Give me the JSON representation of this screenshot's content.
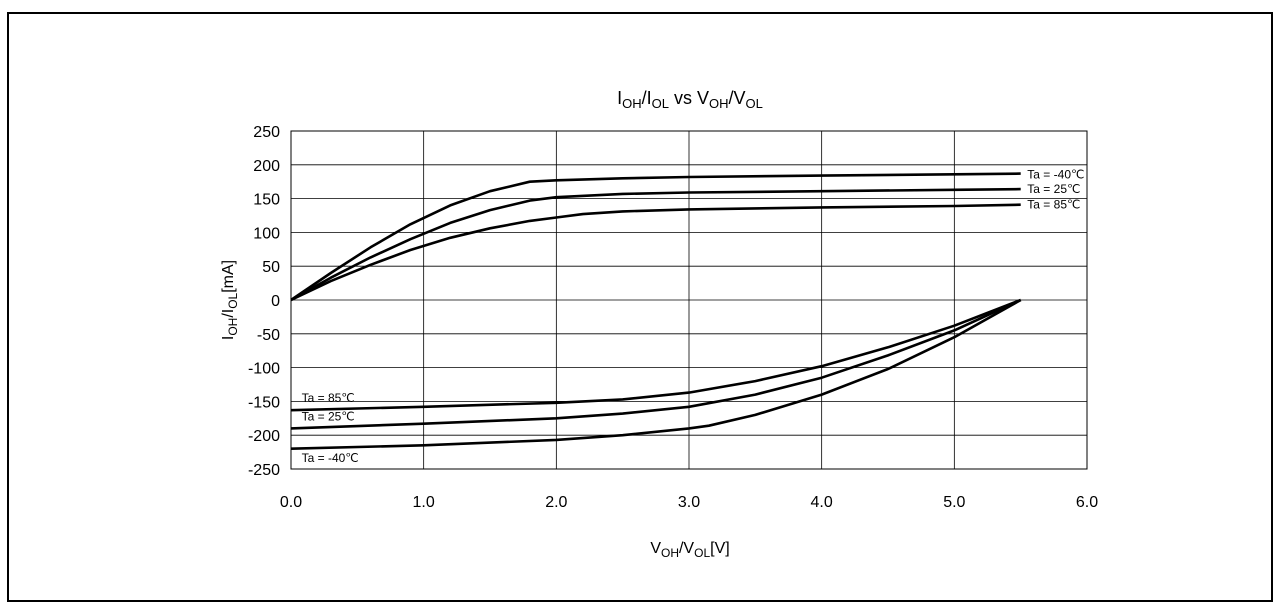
{
  "chart_data": {
    "type": "line",
    "title_parts": [
      {
        "text": "I",
        "sub": false
      },
      {
        "text": "OH",
        "sub": true
      },
      {
        "text": "/I",
        "sub": false
      },
      {
        "text": "OL",
        "sub": true
      },
      {
        "text": " vs V",
        "sub": false
      },
      {
        "text": "OH",
        "sub": true
      },
      {
        "text": "/V",
        "sub": false
      },
      {
        "text": "OL",
        "sub": true
      }
    ],
    "xlabel_parts": [
      {
        "text": "V",
        "sub": false
      },
      {
        "text": "OH",
        "sub": true
      },
      {
        "text": "/V",
        "sub": false
      },
      {
        "text": "OL",
        "sub": true
      },
      {
        "text": "[V]",
        "sub": false
      }
    ],
    "ylabel_parts": [
      {
        "text": "I",
        "sub": false
      },
      {
        "text": "OH",
        "sub": true
      },
      {
        "text": "/I",
        "sub": false
      },
      {
        "text": "OL",
        "sub": true
      },
      {
        "text": "[mA]",
        "sub": false
      }
    ],
    "xlim": [
      0,
      6
    ],
    "ylim": [
      -250,
      250
    ],
    "x_ticks": [
      0,
      1,
      2,
      3,
      4,
      5,
      6
    ],
    "x_tick_labels": [
      "0.0",
      "1.0",
      "2.0",
      "3.0",
      "4.0",
      "5.0",
      "6.0"
    ],
    "y_ticks": [
      250,
      200,
      150,
      100,
      50,
      0,
      -50,
      -100,
      -150,
      -200,
      -250
    ],
    "y_tick_labels": [
      "250",
      "200",
      "150",
      "100",
      "50",
      "0",
      "-50",
      "-100",
      "-150",
      "-200",
      "-250"
    ],
    "grid": true,
    "series": [
      {
        "name": "Ta = -40℃",
        "group": "IOH",
        "points": [
          [
            0,
            0
          ],
          [
            0.3,
            40
          ],
          [
            0.6,
            78
          ],
          [
            0.9,
            112
          ],
          [
            1.2,
            140
          ],
          [
            1.5,
            161
          ],
          [
            1.8,
            175
          ],
          [
            2.0,
            177
          ],
          [
            2.5,
            180
          ],
          [
            3.0,
            182
          ],
          [
            4.0,
            184
          ],
          [
            5.0,
            186
          ],
          [
            5.5,
            187
          ]
        ]
      },
      {
        "name": "Ta = 25℃",
        "group": "IOH",
        "points": [
          [
            0,
            0
          ],
          [
            0.3,
            33
          ],
          [
            0.6,
            63
          ],
          [
            0.9,
            90
          ],
          [
            1.2,
            114
          ],
          [
            1.5,
            133
          ],
          [
            1.8,
            147
          ],
          [
            2.0,
            152
          ],
          [
            2.5,
            157
          ],
          [
            3.0,
            159
          ],
          [
            4.0,
            161
          ],
          [
            5.0,
            163
          ],
          [
            5.5,
            164
          ]
        ]
      },
      {
        "name": "Ta = 85℃",
        "group": "IOH",
        "points": [
          [
            0,
            0
          ],
          [
            0.3,
            28
          ],
          [
            0.6,
            52
          ],
          [
            0.9,
            74
          ],
          [
            1.2,
            92
          ],
          [
            1.5,
            106
          ],
          [
            1.8,
            117
          ],
          [
            2.0,
            122
          ],
          [
            2.2,
            127
          ],
          [
            2.5,
            131
          ],
          [
            3.0,
            134
          ],
          [
            4.0,
            137
          ],
          [
            5.0,
            139
          ],
          [
            5.5,
            141
          ]
        ]
      },
      {
        "name": "Ta = 85℃",
        "group": "IOL",
        "points": [
          [
            0,
            -163
          ],
          [
            1.0,
            -158
          ],
          [
            2.0,
            -152
          ],
          [
            2.5,
            -147
          ],
          [
            3.0,
            -137
          ],
          [
            3.5,
            -120
          ],
          [
            4.0,
            -98
          ],
          [
            4.5,
            -70
          ],
          [
            5.0,
            -38
          ],
          [
            5.5,
            0
          ]
        ]
      },
      {
        "name": "Ta = 25℃",
        "group": "IOL",
        "points": [
          [
            0,
            -190
          ],
          [
            1.0,
            -183
          ],
          [
            2.0,
            -175
          ],
          [
            2.5,
            -168
          ],
          [
            3.0,
            -158
          ],
          [
            3.5,
            -140
          ],
          [
            4.0,
            -115
          ],
          [
            4.5,
            -82
          ],
          [
            5.0,
            -45
          ],
          [
            5.5,
            0
          ]
        ]
      },
      {
        "name": "Ta = -40℃",
        "group": "IOL",
        "points": [
          [
            0,
            -220
          ],
          [
            1.0,
            -215
          ],
          [
            2.0,
            -207
          ],
          [
            2.5,
            -200
          ],
          [
            3.0,
            -190
          ],
          [
            3.15,
            -186
          ],
          [
            3.5,
            -170
          ],
          [
            4.0,
            -140
          ],
          [
            4.5,
            -102
          ],
          [
            5.0,
            -55
          ],
          [
            5.5,
            0
          ]
        ]
      }
    ],
    "annotations": [
      {
        "text": "Ta = -40℃",
        "x": 5.55,
        "y": 186,
        "anchor": "start"
      },
      {
        "text": "Ta = 25℃",
        "x": 5.55,
        "y": 164,
        "anchor": "start"
      },
      {
        "text": "Ta = 85℃",
        "x": 5.55,
        "y": 141,
        "anchor": "start"
      },
      {
        "text": "Ta = 85℃",
        "x": 0.08,
        "y": -145,
        "anchor": "start"
      },
      {
        "text": "Ta = 25℃",
        "x": 0.08,
        "y": -172,
        "anchor": "start"
      },
      {
        "text": "Ta = -40℃",
        "x": 0.08,
        "y": -234,
        "anchor": "start"
      }
    ]
  }
}
